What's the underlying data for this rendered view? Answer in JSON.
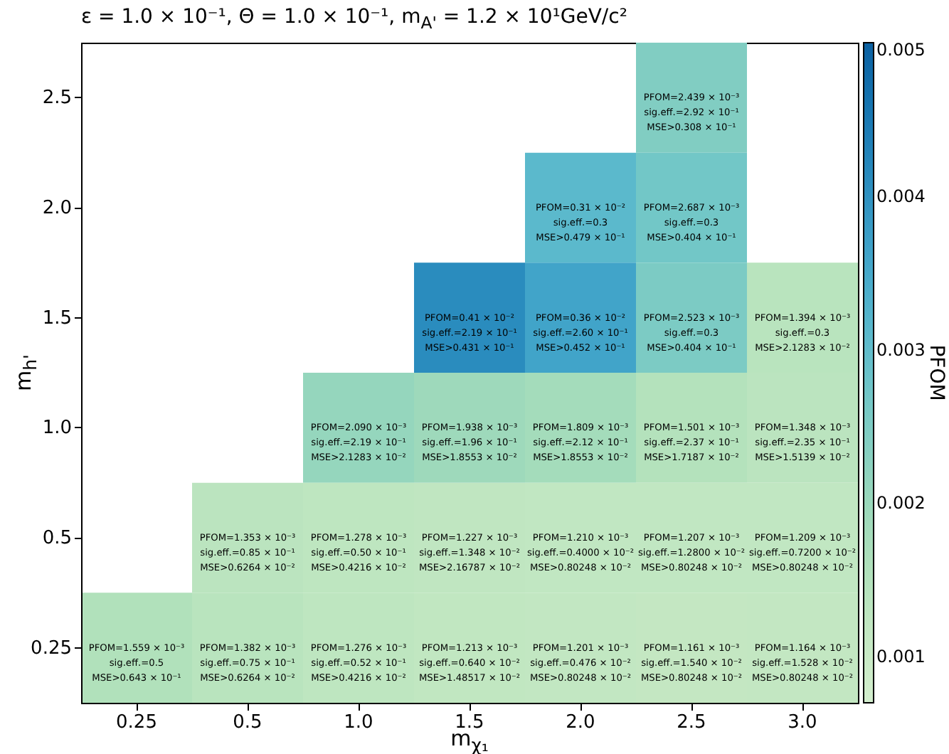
{
  "chart_data": {
    "type": "heatmap",
    "title": "ε = 1.0 × 10⁻¹, Θ = 1.0 × 10⁻¹, m$_{A'}$ = 1.2 × 10¹GeV/c²",
    "xlabel": "m$_{χ₁}$",
    "ylabel": "m$_{h'}$",
    "clabel": "PFOM",
    "categories": [
      "0.25",
      "0.5",
      "1.0",
      "1.5",
      "2.0",
      "2.5",
      "3.0"
    ],
    "y_categories": [
      "2.5",
      "2.0",
      "1.5",
      "1.0",
      "0.5",
      "0.25"
    ],
    "cells": [
      [
        null,
        null,
        null,
        null,
        null,
        0.002439,
        null
      ],
      [
        null,
        null,
        null,
        null,
        0.0031,
        0.002687,
        null
      ],
      [
        null,
        null,
        null,
        0.0041,
        0.0036,
        0.002523,
        0.001394
      ],
      [
        null,
        null,
        0.00209,
        0.001938,
        0.001809,
        0.001501,
        0.001348
      ],
      [
        null,
        0.001353,
        0.001278,
        0.001227,
        0.00121,
        0.001207,
        0.001209
      ],
      [
        0.001559,
        0.001382,
        0.001276,
        0.001213,
        0.001201,
        0.001161,
        0.001164
      ]
    ],
    "cell_labels": [
      [
        null,
        null,
        null,
        null,
        null,
        "PFOM=2.439 × 10⁻³\nsig.eff.=2.92 × 10⁻¹\nMSE>0.308 × 10⁻¹",
        null
      ],
      [
        null,
        null,
        null,
        null,
        "PFOM=0.31 × 10⁻²\nsig.eff.=0.3\nMSE>0.479 × 10⁻¹",
        "PFOM=2.687 × 10⁻³\nsig.eff.=0.3\nMSE>0.404 × 10⁻¹",
        null
      ],
      [
        null,
        null,
        null,
        "PFOM=0.41 × 10⁻²\nsig.eff.=2.19 × 10⁻¹\nMSE>0.431 × 10⁻¹",
        "PFOM=0.36 × 10⁻²\nsig.eff.=2.60 × 10⁻¹\nMSE>0.452 × 10⁻¹",
        "PFOM=2.523 × 10⁻³\nsig.eff.=0.3\nMSE>0.404 × 10⁻¹",
        "PFOM=1.394 × 10⁻³\nsig.eff.=0.3\nMSE>2.1283 × 10⁻²"
      ],
      [
        null,
        null,
        "PFOM=2.090 × 10⁻³\nsig.eff.=2.19 × 10⁻¹\nMSE>2.1283 × 10⁻²",
        "PFOM=1.938 × 10⁻³\nsig.eff.=1.96 × 10⁻¹\nMSE>1.8553 × 10⁻²",
        "PFOM=1.809 × 10⁻³\nsig.eff.=2.12 × 10⁻¹\nMSE>1.8553 × 10⁻²",
        "PFOM=1.501 × 10⁻³\nsig.eff.=2.37 × 10⁻¹\nMSE>1.7187 × 10⁻²",
        "PFOM=1.348 × 10⁻³\nsig.eff.=2.35 × 10⁻¹\nMSE>1.5139 × 10⁻²"
      ],
      [
        null,
        "PFOM=1.353 × 10⁻³\nsig.eff.=0.85 × 10⁻¹\nMSE>0.6264 × 10⁻²",
        "PFOM=1.278 × 10⁻³\nsig.eff.=0.50 × 10⁻¹\nMSE>0.4216 × 10⁻²",
        "PFOM=1.227 × 10⁻³\nsig.eff.=1.348 × 10⁻²\nMSE>2.16787 × 10⁻²",
        "PFOM=1.210 × 10⁻³\nsig.eff.=0.4000 × 10⁻²\nMSE>0.80248 × 10⁻²",
        "PFOM=1.207 × 10⁻³\nsig.eff.=1.2800 × 10⁻²\nMSE>0.80248 × 10⁻²",
        "PFOM=1.209 × 10⁻³\nsig.eff.=0.7200 × 10⁻²\nMSE>0.80248 × 10⁻²"
      ],
      [
        "PFOM=1.559 × 10⁻³\nsig.eff.=0.5\nMSE>0.643 × 10⁻¹",
        "PFOM=1.382 × 10⁻³\nsig.eff.=0.75 × 10⁻¹\nMSE>0.6264 × 10⁻²",
        "PFOM=1.276 × 10⁻³\nsig.eff.=0.52 × 10⁻¹\nMSE>0.4216 × 10⁻²",
        "PFOM=1.213 × 10⁻³\nsig.eff.=0.640 × 10⁻²\nMSE>1.48517 × 10⁻²",
        "PFOM=1.201 × 10⁻³\nsig.eff.=0.476 × 10⁻²\nMSE>0.80248 × 10⁻²",
        "PFOM=1.161 × 10⁻³\nsig.eff.=1.540 × 10⁻²\nMSE>0.80248 × 10⁻²",
        "PFOM=1.164 × 10⁻³\nsig.eff.=1.528 × 10⁻²\nMSE>0.80248 × 10⁻²"
      ]
    ],
    "clim": [
      0.0007,
      0.005
    ],
    "cticks": [
      0.001,
      0.002,
      0.003,
      0.004,
      0.005
    ]
  }
}
